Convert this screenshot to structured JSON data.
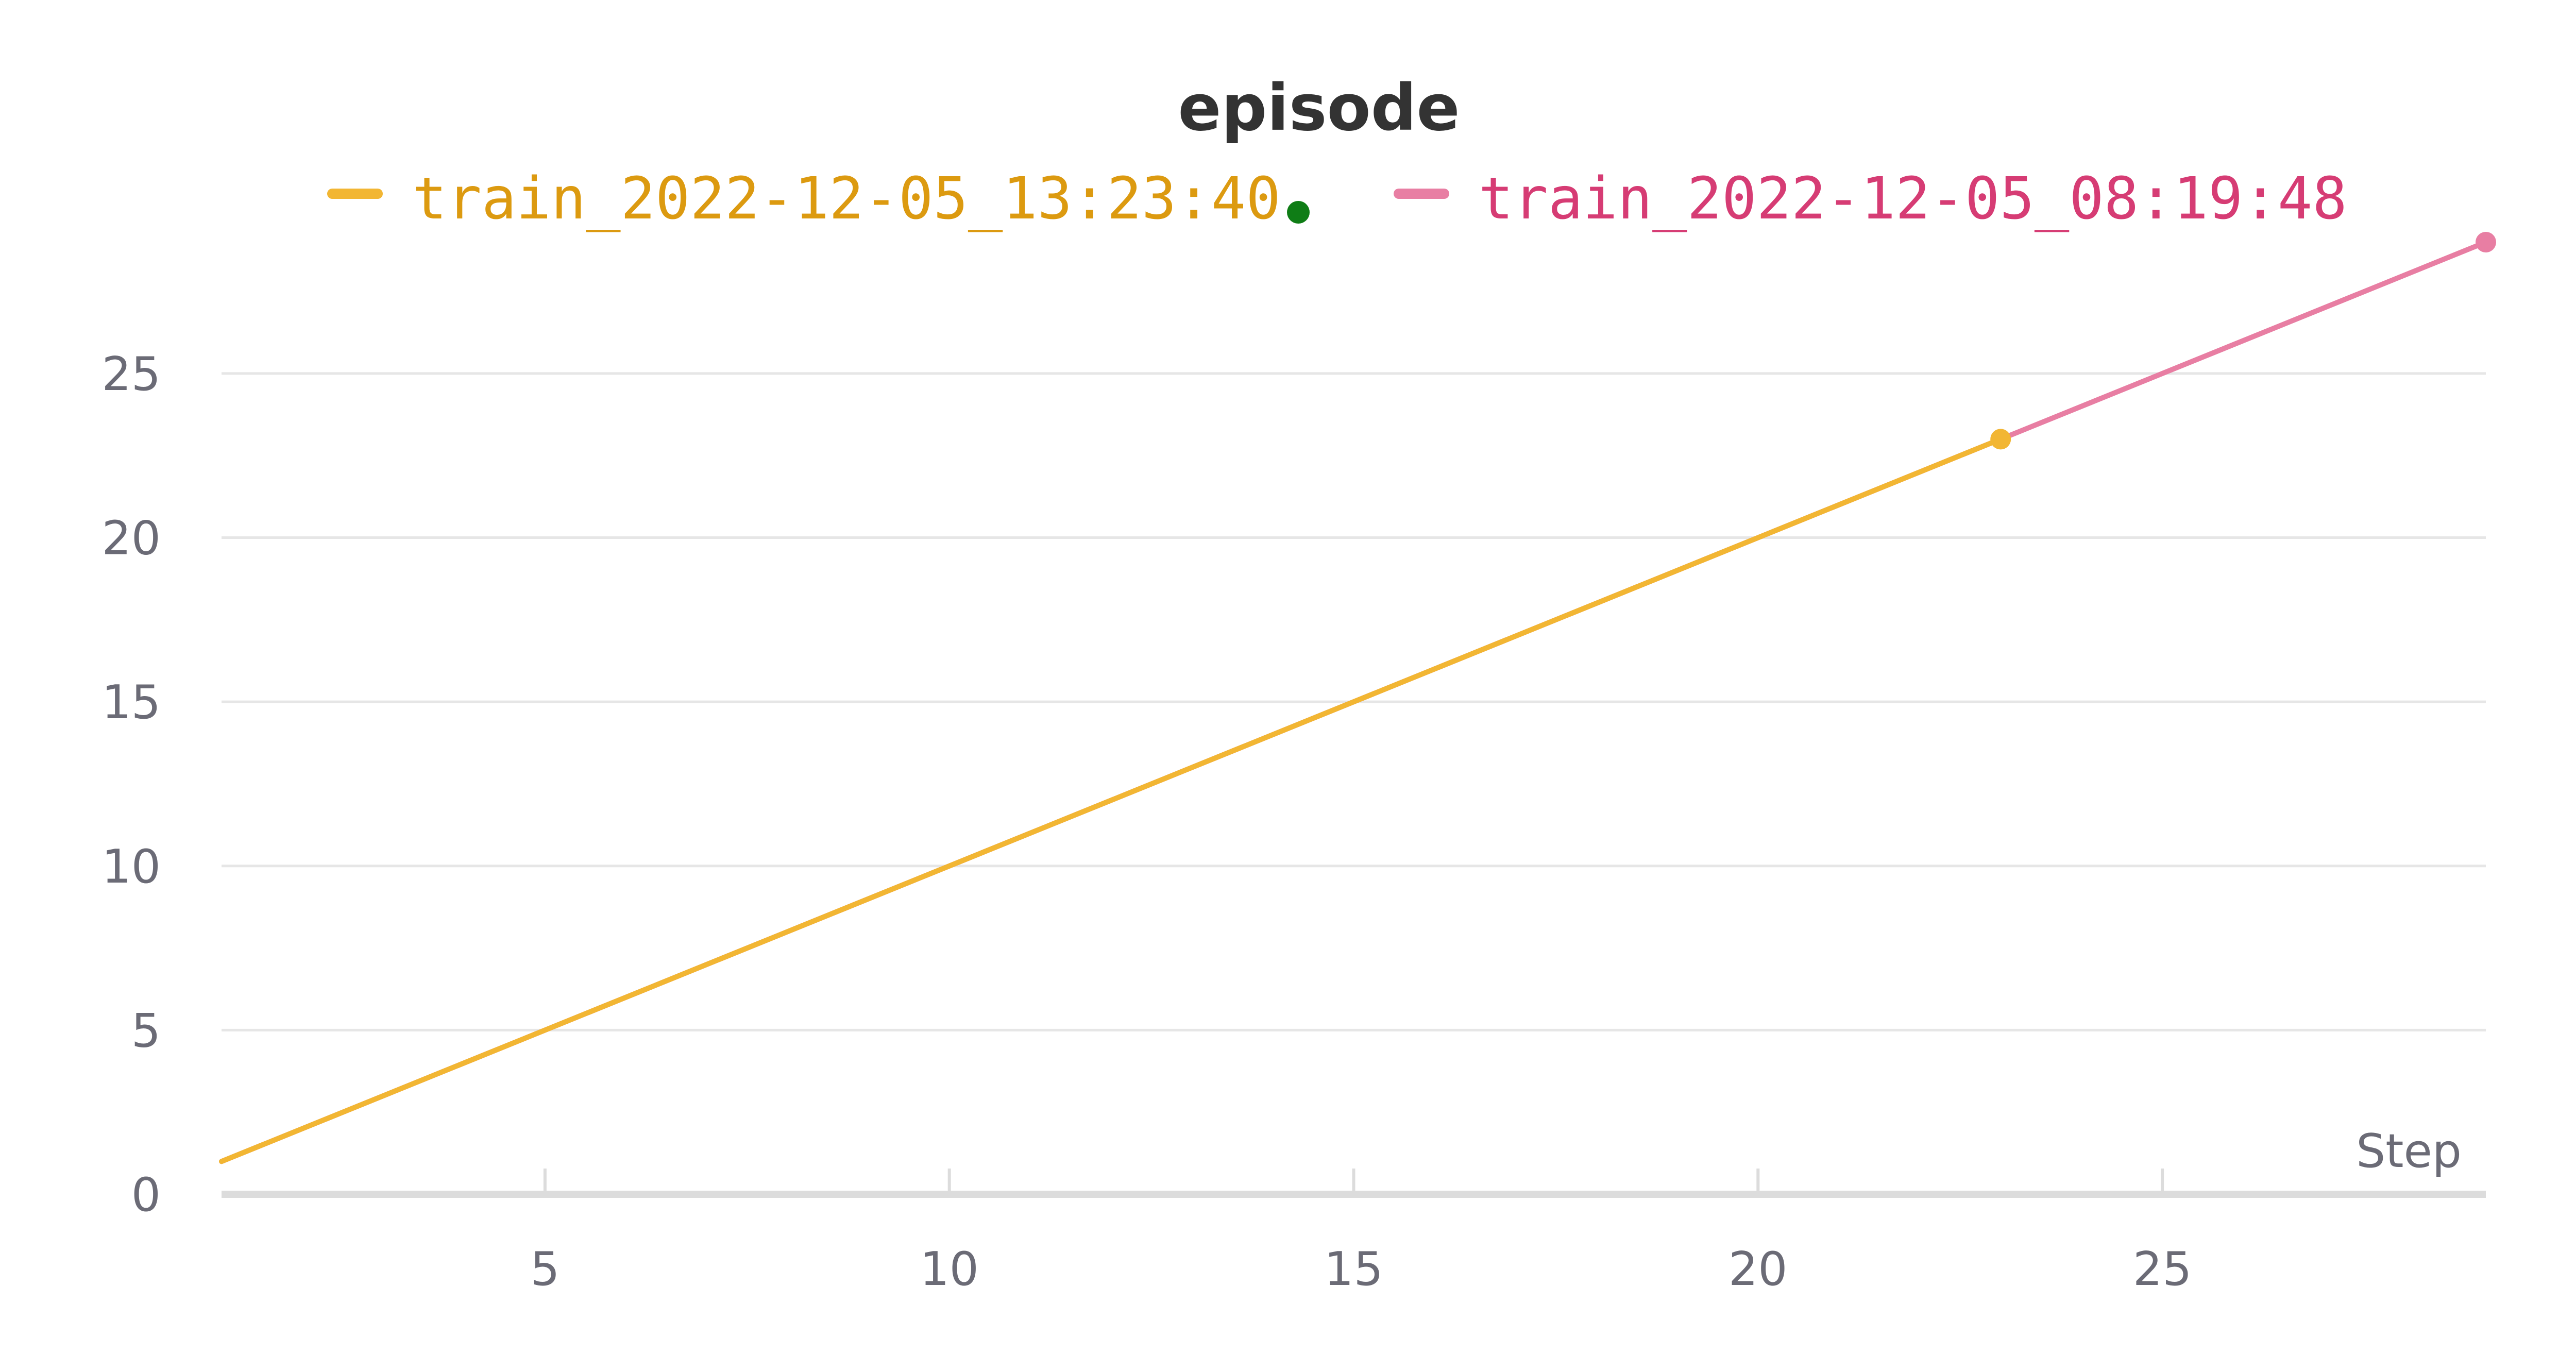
{
  "chart_data": {
    "type": "line",
    "title": "episode",
    "xlabel": "Step",
    "ylabel": "",
    "xlim": [
      1,
      29
    ],
    "ylim": [
      0,
      29
    ],
    "xticks": [
      5,
      10,
      15,
      20,
      25
    ],
    "yticks": [
      0,
      5,
      10,
      15,
      20,
      25
    ],
    "grid": true,
    "legend_position": "top",
    "series": [
      {
        "name": "train_2022-12-05_13:23:40",
        "color": "#f2b633",
        "text_color": "#dc9a10",
        "status_color": "#0f7d16",
        "x": [
          1,
          23
        ],
        "y": [
          1,
          23
        ]
      },
      {
        "name": "train_2022-12-05_08:19:48",
        "color": "#e87ea3",
        "text_color": "#d63c74",
        "x": [
          1,
          29
        ],
        "y": [
          1,
          29
        ]
      }
    ]
  }
}
